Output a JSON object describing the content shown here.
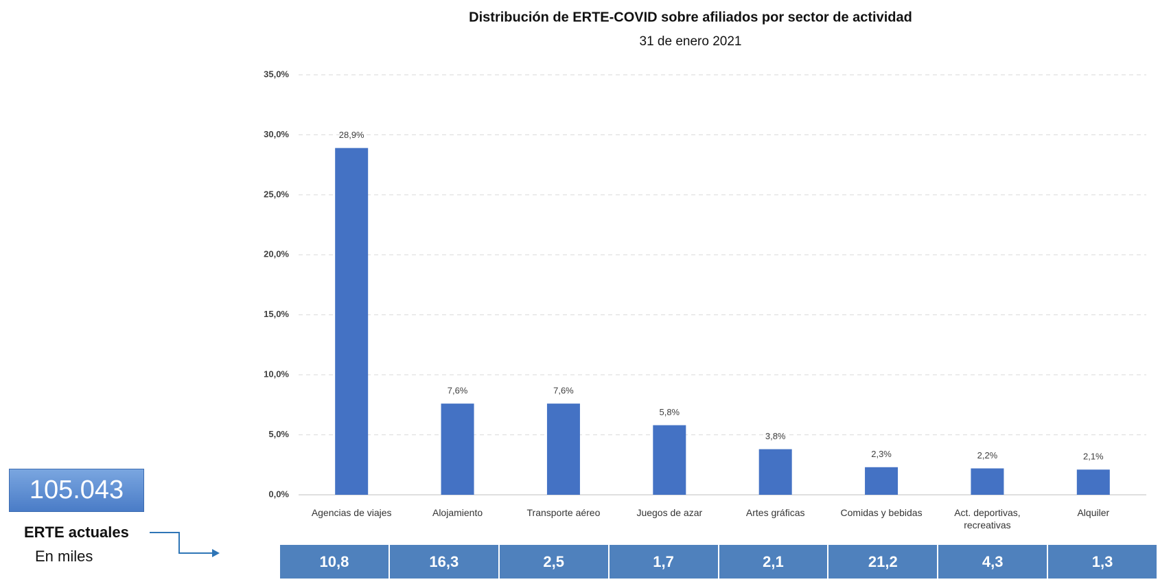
{
  "chart_data": {
    "type": "bar",
    "title": "Distribución de ERTE-COVID sobre afiliados por sector de actividad",
    "subtitle": "31 de enero 2021",
    "categories": [
      "Agencias de viajes",
      "Alojamiento",
      "Transporte aéreo",
      "Juegos de azar",
      "Artes gráficas",
      "Comidas y bebidas",
      "Act. deportivas, recreativas",
      "Alquiler"
    ],
    "values": [
      28.9,
      7.6,
      7.6,
      5.8,
      3.8,
      2.3,
      2.2,
      2.1
    ],
    "value_labels": [
      "28,9%",
      "7,6%",
      "7,6%",
      "5,8%",
      "3,8%",
      "2,3%",
      "2,2%",
      "2,1%"
    ],
    "color": "#4472c4",
    "ylim": [
      0,
      35
    ],
    "yticks": [
      {
        "value": 0,
        "label": "0,0%"
      },
      {
        "value": 5,
        "label": "5,0%"
      },
      {
        "value": 10,
        "label": "10,0%"
      },
      {
        "value": 15,
        "label": "15,0%"
      },
      {
        "value": 20,
        "label": "20,0%"
      },
      {
        "value": 25,
        "label": "25,0%"
      },
      {
        "value": 30,
        "label": "30,0%"
      },
      {
        "value": 35,
        "label": "35,0%"
      }
    ],
    "grid": true
  },
  "erte": {
    "total": "105.043",
    "label": "ERTE actuales",
    "unit": "En miles",
    "values": [
      10.8,
      16.3,
      2.5,
      1.7,
      2.1,
      21.2,
      4.3,
      1.3
    ],
    "value_labels": [
      "10,8",
      "16,3",
      "2,5",
      "1,7",
      "2,1",
      "21,2",
      "4,3",
      "1,3"
    ]
  }
}
